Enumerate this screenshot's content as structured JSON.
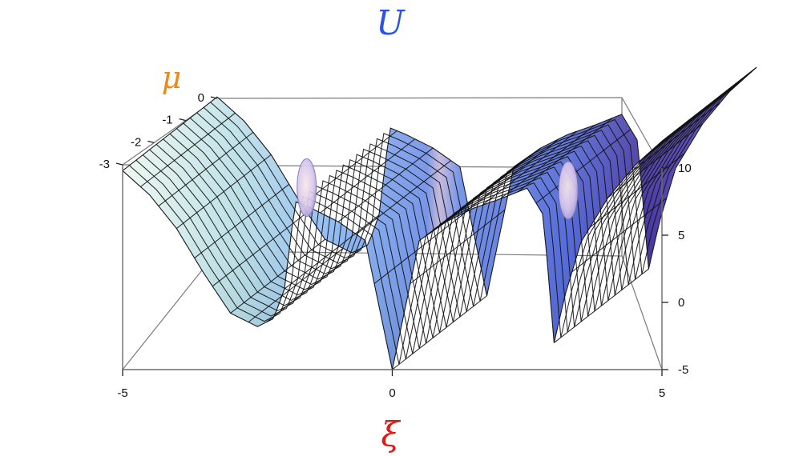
{
  "chart_data": {
    "type": "surface3d",
    "title": "U",
    "xlabel": "ξ",
    "ylabel": "μ",
    "zlabel": "",
    "x_ticks": [
      "-5",
      "0",
      "5"
    ],
    "y_ticks": [
      "-3",
      "-2",
      "-1",
      "0"
    ],
    "z_ticks": [
      "-5",
      "0",
      "5",
      "10"
    ],
    "xlim": [
      -5,
      5
    ],
    "ylim": [
      -3,
      0
    ],
    "zlim": [
      -5,
      10
    ],
    "grid": false,
    "x_profile": {
      "x": [
        -5,
        -4.5,
        -4,
        -3.5,
        -3,
        -2.5,
        -2.2,
        -2,
        -1.8,
        -1.5,
        -1,
        -0.5,
        0,
        0.5,
        1,
        1.5,
        2,
        2.5,
        2.8,
        3,
        3.2,
        3.5,
        4,
        4.5,
        5
      ],
      "u": [
        9.8,
        8.0,
        5.5,
        2.2,
        -0.8,
        -1.8,
        -1.2,
        1.0,
        7.5,
        7.0,
        6.0,
        4.6,
        -5.0,
        4.6,
        6.0,
        7.0,
        7.7,
        8.5,
        6.5,
        -3.0,
        0.5,
        4.5,
        7.8,
        10.2,
        12.0
      ]
    },
    "colors": {
      "title": "#2a52e8",
      "xlabel": "#e31a14",
      "ylabel": "#f08a14",
      "surface_palette": [
        "#f8f3e1",
        "#bfe3e8",
        "#9fd2f2",
        "#7aa7ea",
        "#5567d4",
        "#3b2f9e",
        "#f0c7cf"
      ]
    }
  }
}
